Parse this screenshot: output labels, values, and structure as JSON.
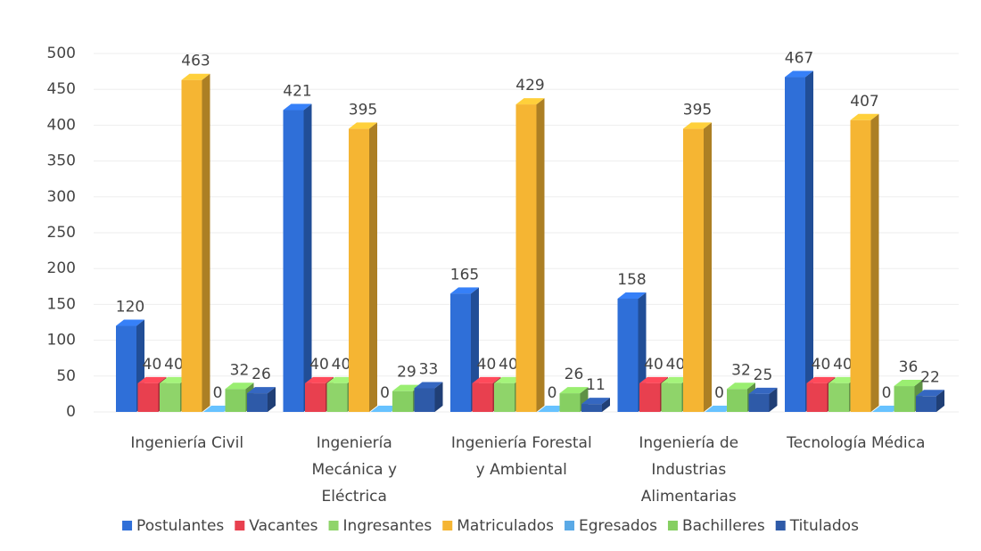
{
  "chart_data": {
    "type": "bar3d",
    "categories": [
      "Ingeniería Civil",
      "Ingeniería Mecánica y Eléctrica",
      "Ingeniería Forestal y Ambiental",
      "Ingeniería de Industrias Alimentarias",
      "Tecnología Médica"
    ],
    "series": [
      {
        "name": "Postulantes",
        "color": "#2f6fd8",
        "values": [
          120,
          421,
          165,
          158,
          467
        ]
      },
      {
        "name": "Vacantes",
        "color": "#e8404f",
        "values": [
          40,
          40,
          40,
          40,
          40
        ]
      },
      {
        "name": "Ingresantes",
        "color": "#8fd46a",
        "values": [
          40,
          40,
          40,
          40,
          40
        ]
      },
      {
        "name": "Matriculados",
        "color": "#f5b533",
        "values": [
          463,
          395,
          429,
          395,
          407
        ]
      },
      {
        "name": "Egresados",
        "color": "#5aa9e6",
        "values": [
          0,
          0,
          0,
          0,
          0
        ]
      },
      {
        "name": "Bachilleres",
        "color": "#86cf62",
        "values": [
          32,
          29,
          26,
          32,
          36
        ]
      },
      {
        "name": "Titulados",
        "color": "#2e5aa8",
        "values": [
          26,
          33,
          11,
          25,
          22
        ]
      }
    ],
    "ylim": [
      0,
      500
    ],
    "yticks": [
      0,
      50,
      100,
      150,
      200,
      250,
      300,
      350,
      400,
      450,
      500
    ],
    "grid": true,
    "legend": "bottom"
  }
}
